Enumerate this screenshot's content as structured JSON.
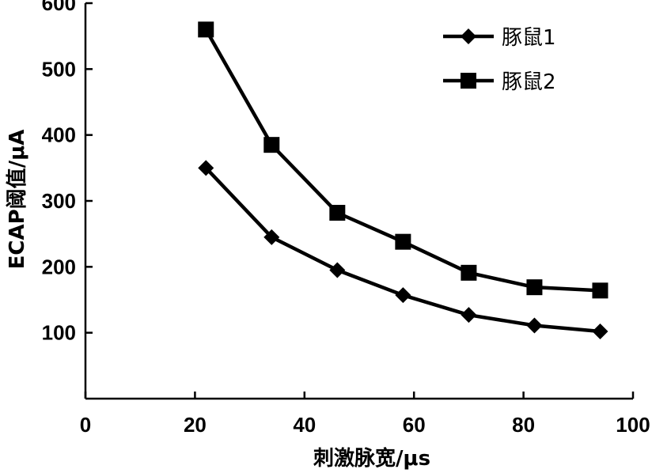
{
  "chart_data": {
    "type": "line",
    "title": "",
    "xlabel": "刺激脉宽/μs",
    "ylabel": "ECAP阈值/μA",
    "xlim": [
      0,
      100
    ],
    "ylim": [
      0,
      600
    ],
    "x_ticks": [
      0,
      20,
      40,
      60,
      80,
      100
    ],
    "y_ticks": [
      100,
      200,
      300,
      400,
      500,
      600
    ],
    "grid": false,
    "legend_position": "top-right",
    "x": [
      22,
      34,
      46,
      58,
      70,
      82,
      94
    ],
    "series": [
      {
        "name": "豚鼠1",
        "marker": "diamond",
        "color": "#000000",
        "values": [
          350,
          245,
          195,
          157,
          127,
          111,
          102
        ]
      },
      {
        "name": "豚鼠2",
        "marker": "square",
        "color": "#000000",
        "values": [
          560,
          385,
          282,
          238,
          191,
          169,
          164
        ]
      }
    ]
  }
}
